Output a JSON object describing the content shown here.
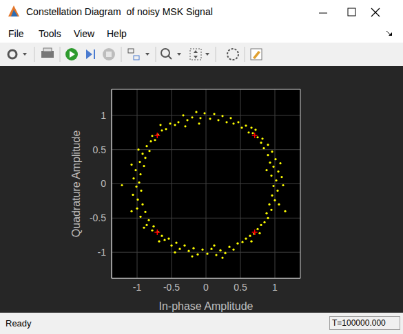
{
  "window": {
    "title": "Constellation Diagram  of noisy MSK Signal",
    "menu": [
      "File",
      "Tools",
      "View",
      "Help"
    ],
    "status": "Ready",
    "time": "T=100000.000"
  },
  "chart_data": {
    "type": "scatter",
    "x_label": "In-phase Amplitude",
    "y_label": "Quadrature Amplitude",
    "xlim": [
      -1.37,
      1.37
    ],
    "ylim": [
      -1.38,
      1.38
    ],
    "xticks": [
      -1,
      -0.5,
      0,
      0.5,
      1
    ],
    "yticks": [
      -1,
      -0.5,
      0,
      0.5,
      1
    ],
    "grid": true,
    "series": [
      {
        "color": "#ffff00",
        "marker": "dot",
        "x": [
          1.02,
          0.95,
          1.05,
          0.98,
          0.93,
          1.01,
          0.9,
          0.96,
          0.84,
          0.9,
          0.8,
          0.75,
          0.82,
          0.68,
          0.72,
          0.62,
          0.58,
          0.52,
          0.47,
          0.4,
          0.36,
          0.3,
          0.24,
          0.18,
          0.12,
          0.06,
          1.1,
          0.88,
          1.08,
          0.66,
          -0.02,
          -0.08,
          -0.14,
          -0.2,
          -0.27,
          -0.33,
          -0.4,
          -0.45,
          -0.52,
          -0.58,
          -0.64,
          -0.7,
          -0.74,
          -0.8,
          -0.86,
          -0.82,
          -0.92,
          -0.88,
          -0.96,
          -0.9,
          -1.02,
          -0.95,
          -1.05,
          -0.97,
          -0.78,
          -0.66,
          -0.98,
          -1.08,
          -0.3,
          -0.1,
          -1.01,
          -0.94,
          -1.06,
          -0.99,
          -0.92,
          -1.0,
          -0.88,
          -0.95,
          -0.83,
          -0.86,
          -0.76,
          -0.7,
          -0.78,
          -0.64,
          -0.6,
          -0.54,
          -0.5,
          -0.43,
          -0.38,
          -0.31,
          -0.25,
          -0.18,
          -0.12,
          -0.05,
          -1.22,
          -0.68,
          -0.9,
          -1.08,
          -0.45,
          -0.2,
          0.02,
          0.08,
          0.15,
          0.21,
          0.28,
          0.34,
          0.4,
          0.46,
          0.53,
          0.58,
          0.64,
          0.7,
          0.75,
          0.8,
          0.85,
          0.9,
          0.88,
          0.95,
          0.92,
          1.0,
          0.96,
          1.04,
          0.98,
          1.15,
          0.66,
          0.78,
          1.06,
          0.24,
          0.12,
          1.12
        ],
        "values": [
          0.05,
          0.12,
          0.18,
          0.25,
          0.31,
          0.36,
          0.42,
          0.47,
          0.52,
          0.57,
          0.6,
          0.68,
          0.66,
          0.74,
          0.79,
          0.75,
          0.85,
          0.82,
          0.9,
          0.88,
          0.96,
          0.9,
          0.99,
          0.93,
          1.02,
          0.95,
          0.1,
          0.2,
          0.3,
          0.82,
          1.03,
          0.96,
          1.05,
          0.97,
          0.93,
          1.0,
          0.9,
          0.86,
          0.88,
          0.8,
          0.78,
          0.72,
          0.64,
          0.62,
          0.55,
          0.48,
          0.44,
          0.38,
          0.32,
          0.26,
          0.2,
          0.14,
          0.08,
          0.02,
          0.7,
          0.86,
          0.5,
          0.28,
          0.84,
          0.88,
          -0.04,
          -0.1,
          -0.16,
          -0.23,
          -0.3,
          -0.36,
          -0.41,
          -0.48,
          -0.53,
          -0.6,
          -0.62,
          -0.7,
          -0.68,
          -0.76,
          -0.82,
          -0.8,
          -0.9,
          -0.86,
          -0.95,
          -0.9,
          -0.98,
          -0.94,
          -1.03,
          -0.96,
          -0.02,
          -0.84,
          -0.64,
          -0.4,
          -1.0,
          -1.06,
          -1.02,
          -0.95,
          -1.04,
          -0.97,
          -1.01,
          -0.92,
          -0.96,
          -0.87,
          -0.85,
          -0.8,
          -0.76,
          -0.73,
          -0.66,
          -0.6,
          -0.56,
          -0.5,
          -0.43,
          -0.38,
          -0.3,
          -0.24,
          -0.17,
          -0.1,
          -0.03,
          -0.4,
          -0.84,
          -0.72,
          -0.3,
          -1.08,
          -0.9,
          -0.02
        ]
      },
      {
        "color": "#ff0000",
        "marker": "plus",
        "x": [
          0.707,
          -0.707,
          -0.707,
          0.707
        ],
        "values": [
          0.707,
          0.707,
          -0.707,
          -0.707
        ]
      }
    ]
  }
}
